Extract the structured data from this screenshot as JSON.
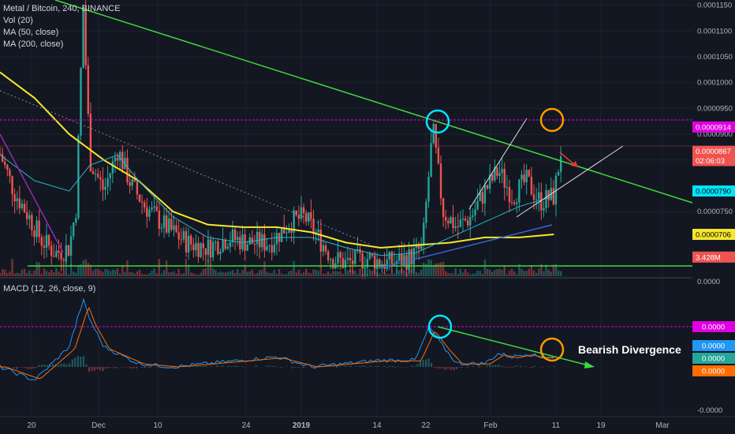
{
  "legend": {
    "symbol": "Metal / Bitcoin, 240, BINANCE",
    "vol": "Vol (20)",
    "ma50": "MA (50, close)",
    "ma200": "MA (200, close)"
  },
  "macd_legend": "MACD (12, 26, close, 9)",
  "annotation": "Bearish Divergence",
  "colors": {
    "background": "#131722",
    "up": "#26a69a",
    "down": "#ef5350",
    "ma50": "#2bb5c8",
    "ma200": "#f5e72d",
    "trendline": "#3fd83f",
    "magenta_line": "#e000e0",
    "cyan_circle": "#00e5ff",
    "orange_circle": "#ff9800"
  },
  "chart_data": [
    {
      "type": "candlestick",
      "title": "Metal / Bitcoin, 240, BINANCE",
      "y_ticks": [
        "0.0001150",
        "0.0001100",
        "0.0001050",
        "0.0001000",
        "0.0000950",
        "0.0000900",
        "0.0000850",
        "0.0000750"
      ],
      "y_range": [
        6.25e-05,
        0.000116
      ],
      "x_ticks": [
        "20",
        "Dec",
        "10",
        "24",
        "2019",
        "14",
        "22",
        "Feb",
        "11",
        "19",
        "Mar"
      ],
      "price_badges": [
        {
          "label": "0.0000914",
          "value": 9.14e-05,
          "color": "#e000e0"
        },
        {
          "label": "0.0000867",
          "value": 8.67e-05,
          "color": "#ef5350"
        },
        {
          "label": "02:06:03",
          "value": 8.49e-05,
          "color": "#ef5350"
        },
        {
          "label": "0.0000790",
          "value": 7.9e-05,
          "color": "#00e5ff"
        },
        {
          "label": "0.0000706",
          "value": 7.06e-05,
          "color": "#f5e72d"
        },
        {
          "label": "3.428M",
          "value": 6.62e-05,
          "color": "#ef5350"
        }
      ],
      "price_path": [
        [
          0.0,
          8.62e-05
        ],
        [
          0.02,
          7.9e-05
        ],
        [
          0.04,
          7.45e-05
        ],
        [
          0.06,
          6.95e-05
        ],
        [
          0.08,
          6.7e-05
        ],
        [
          0.1,
          6.8e-05
        ],
        [
          0.11,
          7.6e-05
        ],
        [
          0.12,
          0.000115
        ],
        [
          0.13,
          8.5e-05
        ],
        [
          0.15,
          7.9e-05
        ],
        [
          0.17,
          8.7e-05
        ],
        [
          0.19,
          8e-05
        ],
        [
          0.21,
          7.6e-05
        ],
        [
          0.24,
          7.2e-05
        ],
        [
          0.27,
          6.9e-05
        ],
        [
          0.3,
          6.8e-05
        ],
        [
          0.33,
          7e-05
        ],
        [
          0.36,
          6.9e-05
        ],
        [
          0.39,
          6.9e-05
        ],
        [
          0.42,
          7.3e-05
        ],
        [
          0.44,
          7.4e-05
        ],
        [
          0.46,
          7e-05
        ],
        [
          0.48,
          6.6e-05
        ],
        [
          0.5,
          6.5e-05
        ],
        [
          0.53,
          6.6e-05
        ],
        [
          0.56,
          6.5e-05
        ],
        [
          0.59,
          6.6e-05
        ],
        [
          0.61,
          6.8e-05
        ],
        [
          0.625,
          9.1e-05
        ],
        [
          0.64,
          7.5e-05
        ],
        [
          0.66,
          7.2e-05
        ],
        [
          0.68,
          7.4e-05
        ],
        [
          0.7,
          7.9e-05
        ],
        [
          0.72,
          8.3e-05
        ],
        [
          0.74,
          7.8e-05
        ],
        [
          0.76,
          8.1e-05
        ],
        [
          0.78,
          7.7e-05
        ],
        [
          0.8,
          7.8e-05
        ],
        [
          0.81,
          8.67e-05
        ]
      ],
      "ma50_path": [
        [
          0.0,
          8.6e-05
        ],
        [
          0.05,
          8.1e-05
        ],
        [
          0.1,
          7.9e-05
        ],
        [
          0.13,
          8.4e-05
        ],
        [
          0.17,
          8.6e-05
        ],
        [
          0.2,
          8.1e-05
        ],
        [
          0.25,
          7.4e-05
        ],
        [
          0.3,
          7e-05
        ],
        [
          0.35,
          6.9e-05
        ],
        [
          0.4,
          7e-05
        ],
        [
          0.45,
          7e-05
        ],
        [
          0.5,
          6.8e-05
        ],
        [
          0.55,
          6.65e-05
        ],
        [
          0.6,
          6.7e-05
        ],
        [
          0.65,
          7e-05
        ],
        [
          0.7,
          7.3e-05
        ],
        [
          0.75,
          7.6e-05
        ],
        [
          0.8,
          7.8e-05
        ]
      ],
      "ma200_path": [
        [
          0.0,
          0.000102
        ],
        [
          0.05,
          9.7e-05
        ],
        [
          0.1,
          9e-05
        ],
        [
          0.15,
          8.5e-05
        ],
        [
          0.2,
          8.1e-05
        ],
        [
          0.25,
          7.5e-05
        ],
        [
          0.3,
          7.25e-05
        ],
        [
          0.35,
          7.2e-05
        ],
        [
          0.4,
          7.2e-05
        ],
        [
          0.45,
          7.1e-05
        ],
        [
          0.5,
          6.9e-05
        ],
        [
          0.55,
          6.8e-05
        ],
        [
          0.6,
          6.85e-05
        ],
        [
          0.65,
          6.9e-05
        ],
        [
          0.7,
          7e-05
        ],
        [
          0.75,
          7e-05
        ],
        [
          0.8,
          7.06e-05
        ]
      ],
      "horizontal_line": 9.14e-05,
      "support_line": 6.6e-05
    },
    {
      "type": "line",
      "title": "MACD (12, 26, close, 9)",
      "y_ticks": [
        "0.0000",
        "-0.0000"
      ],
      "badges": [
        {
          "label": "0.0000",
          "color": "#e000e0"
        },
        {
          "label": "0.0000",
          "color": "#2196f3"
        },
        {
          "label": "0.0000",
          "color": "#26a69a"
        },
        {
          "label": "0.0000",
          "color": "#ff6d00"
        }
      ],
      "macd_path": [
        [
          0.0,
          0.0
        ],
        [
          0.05,
          -0.2
        ],
        [
          0.08,
          0.1
        ],
        [
          0.1,
          0.3
        ],
        [
          0.12,
          1.0
        ],
        [
          0.13,
          0.7
        ],
        [
          0.15,
          0.3
        ],
        [
          0.2,
          0.05
        ],
        [
          0.25,
          0.0
        ],
        [
          0.3,
          0.05
        ],
        [
          0.35,
          0.1
        ],
        [
          0.4,
          0.15
        ],
        [
          0.45,
          0.0
        ],
        [
          0.5,
          0.05
        ],
        [
          0.55,
          0.1
        ],
        [
          0.6,
          0.1
        ],
        [
          0.62,
          0.6
        ],
        [
          0.64,
          0.3
        ],
        [
          0.66,
          0.05
        ],
        [
          0.7,
          0.05
        ],
        [
          0.72,
          0.2
        ],
        [
          0.74,
          0.15
        ],
        [
          0.76,
          0.2
        ],
        [
          0.78,
          0.15
        ],
        [
          0.8,
          0.15
        ]
      ]
    }
  ]
}
